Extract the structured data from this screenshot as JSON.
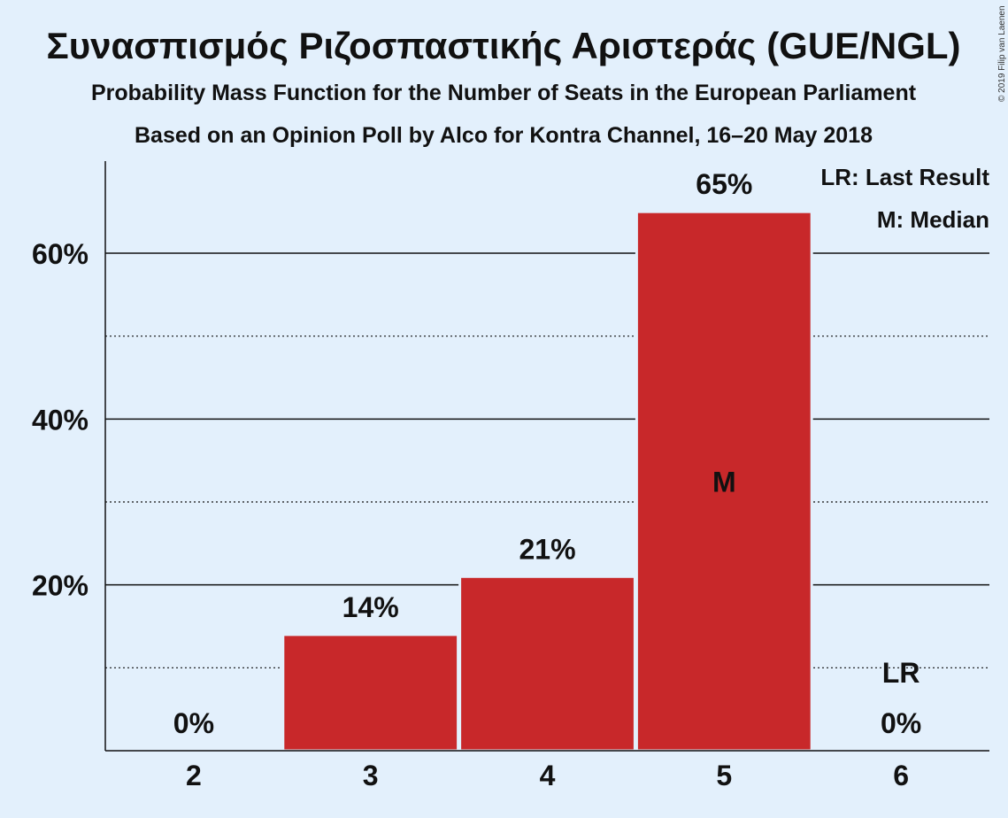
{
  "chart_data": {
    "type": "bar",
    "title": "Συνασπισμός Ριζοσπαστικής Αριστεράς (GUE/NGL)",
    "subtitle": "Probability Mass Function for the Number of Seats in the European Parliament",
    "subtitle2": "Based on an Opinion Poll by Alco for Kontra Channel, 16–20 May 2018",
    "categories": [
      "2",
      "3",
      "4",
      "5",
      "6"
    ],
    "values": [
      0,
      14,
      21,
      65,
      0
    ],
    "value_labels": [
      "0%",
      "14%",
      "21%",
      "65%",
      "0%"
    ],
    "ylim": [
      0,
      70
    ],
    "yticks": [
      20,
      40,
      60
    ],
    "ytick_labels": [
      "20%",
      "40%",
      "60%"
    ],
    "minor_grid": [
      10,
      30,
      50
    ],
    "median_index": 3,
    "median_label": "M",
    "last_result_index": 4,
    "last_result_label": "LR",
    "legend": [
      "LR: Last Result",
      "M: Median"
    ],
    "copyright": "© 2019 Filip van Laenen",
    "colors": {
      "bar": "#c8282a",
      "background": "#e3f0fc",
      "text": "#111111"
    }
  }
}
